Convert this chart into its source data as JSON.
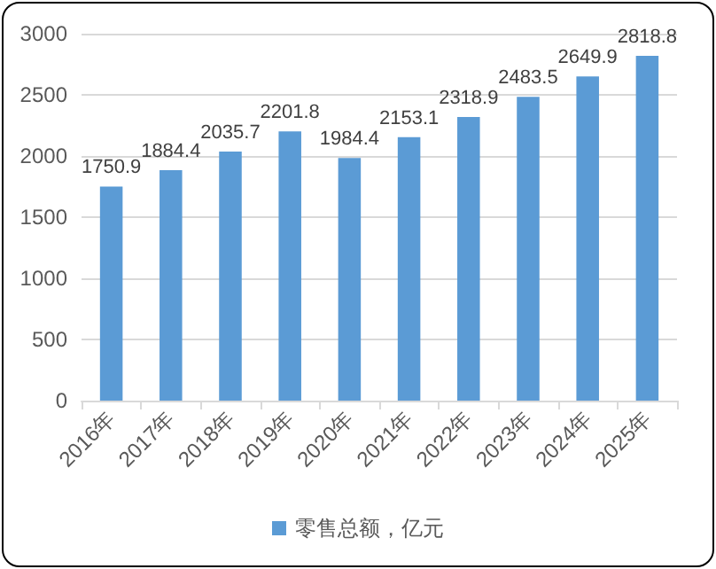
{
  "chart_data": {
    "type": "bar",
    "categories": [
      "2016年",
      "2017年",
      "2018年",
      "2019年",
      "2020年",
      "2021年",
      "2022年",
      "2023年",
      "2024年",
      "2025年"
    ],
    "series": [
      {
        "name": "零售总额，亿元",
        "color": "#5b9bd5",
        "values": [
          1750.9,
          1884.4,
          2035.7,
          2201.8,
          1984.4,
          2153.1,
          2318.9,
          2483.5,
          2649.9,
          2818.8
        ]
      }
    ],
    "ylim": [
      0,
      3000
    ],
    "yticks": [
      0,
      500,
      1000,
      1500,
      2000,
      2500,
      3000
    ],
    "grid": "y",
    "legend": "bottom",
    "data_labels": true
  }
}
